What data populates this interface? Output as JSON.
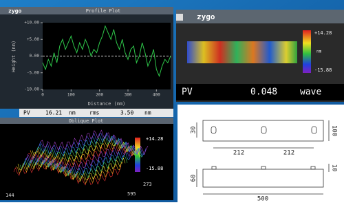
{
  "profile_window": {
    "logo": "zygo",
    "title": "Profile Plot",
    "y_label": "Height (nm)",
    "x_label": "Distance (mm)",
    "chart": {
      "type": "line",
      "xlim": [
        0,
        450
      ],
      "xticks": [
        0,
        100,
        200,
        300,
        400
      ],
      "ylim": [
        -10,
        10
      ],
      "yticks": [
        {
          "value": 10,
          "label": "+10.00"
        },
        {
          "value": 5,
          "label": "+5.00"
        },
        {
          "value": 0,
          "label": "0.00"
        },
        {
          "value": -5,
          "label": "-5.00"
        },
        {
          "value": -10,
          "label": "-10.00"
        }
      ],
      "color": "#2ec84a",
      "zero_line": true,
      "x": [
        0,
        10,
        20,
        30,
        40,
        50,
        60,
        70,
        80,
        90,
        100,
        110,
        120,
        130,
        140,
        150,
        160,
        170,
        180,
        190,
        200,
        210,
        220,
        230,
        240,
        250,
        260,
        270,
        280,
        290,
        300,
        310,
        320,
        330,
        340,
        350,
        360,
        370,
        380,
        390,
        400,
        410,
        420,
        430,
        440,
        450
      ],
      "values": [
        -2,
        -4,
        -1,
        -3,
        1,
        -2,
        3,
        5,
        2,
        4,
        6,
        3,
        1,
        4,
        2,
        5,
        3,
        0,
        2,
        1,
        4,
        6,
        9,
        7,
        5,
        8,
        4,
        2,
        5,
        1,
        -1,
        2,
        3,
        -2,
        0,
        4,
        1,
        -3,
        -1,
        2,
        -4,
        -6,
        -3,
        -1,
        -2,
        0
      ]
    }
  },
  "stats": {
    "pv_label": "PV",
    "pv_value": "16.21",
    "pv_unit": "nm",
    "rms_label": "rms",
    "rms_value": "3.50",
    "rms_unit": "nm"
  },
  "oblique_window": {
    "title": "Oblique Plot",
    "scale_max": "+14.28",
    "scale_min": "-15.88",
    "x_start": "144",
    "x_end": "595",
    "y_end": "273"
  },
  "map_window": {
    "logo": "zygo",
    "scale_max": "+14.28",
    "scale_unit": "nm",
    "scale_min": "-15.88",
    "pv_label": "PV",
    "pv_value": "0.048",
    "pv_unit": "wave"
  },
  "drawing": {
    "top_height": "30",
    "spacing_left": "212",
    "spacing_right": "212",
    "width_top": "100",
    "front_height": "60",
    "tab_height": "10",
    "length": "500"
  }
}
